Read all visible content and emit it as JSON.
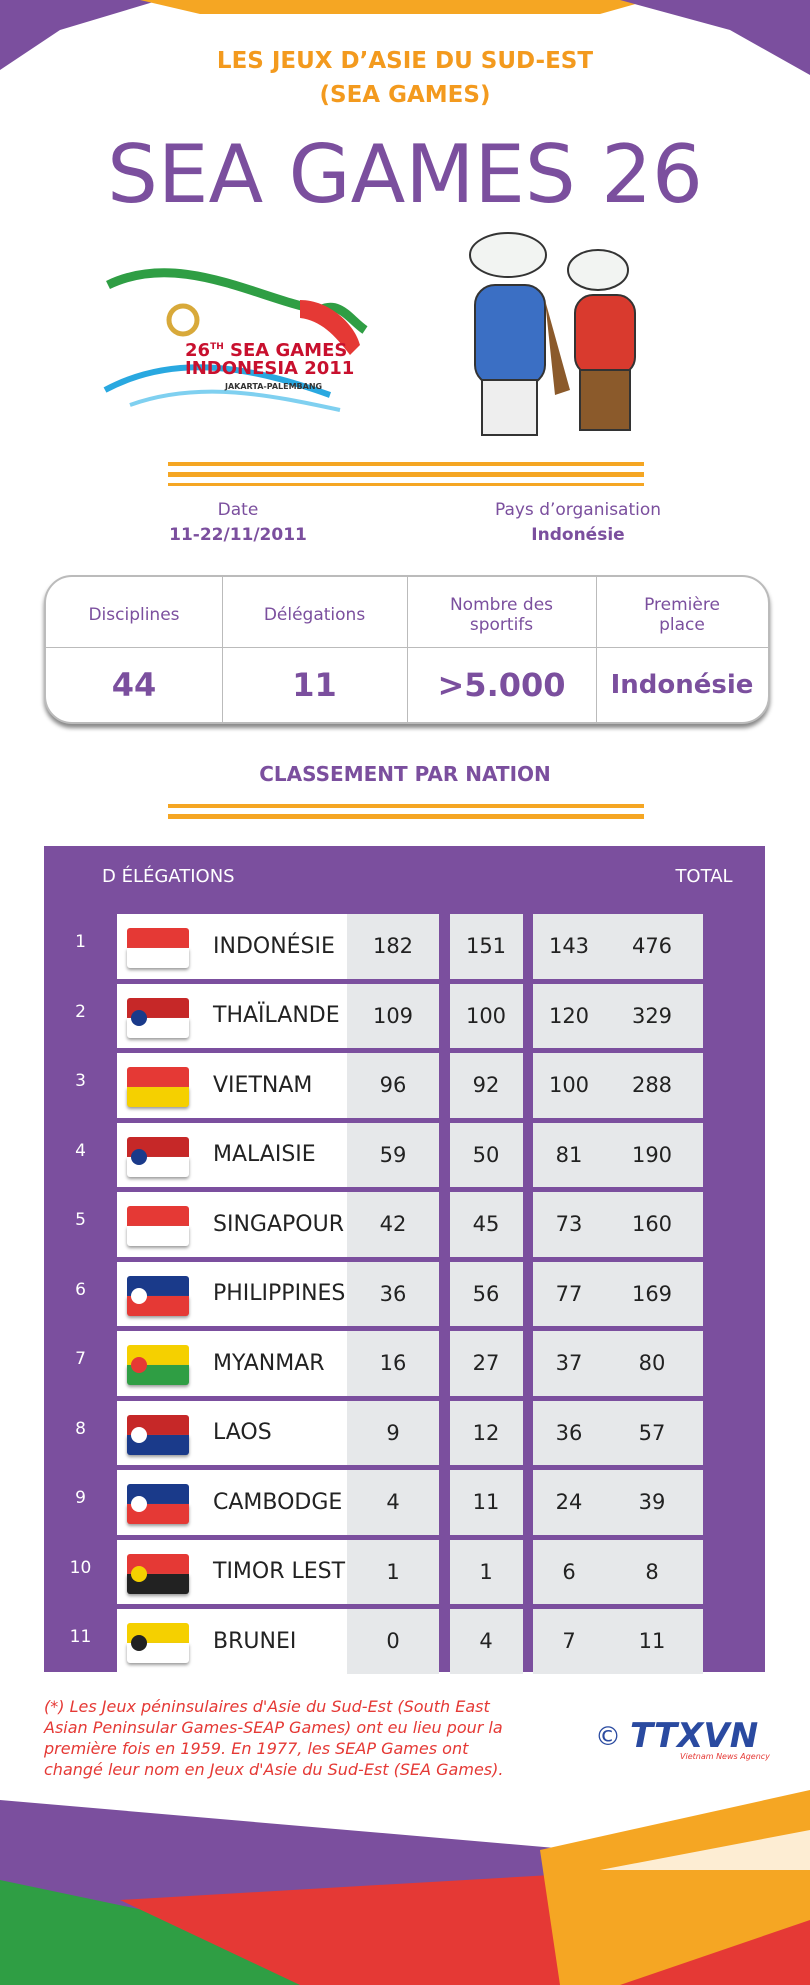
{
  "header": {
    "subtitle": [
      "LES JEUX D’ASIE DU SUD-EST",
      "(SEA GAMES)"
    ],
    "title": "SEA GAMES 26"
  },
  "logo": {
    "edition": "26",
    "suffix": "TH",
    "lines": [
      "SEA GAMES",
      "INDONESIA 2011",
      "JAKARTA-PALEMBANG"
    ]
  },
  "info": [
    {
      "label": "Date",
      "value": "11-22/11/2011"
    },
    {
      "label": "Pays d’organisation",
      "value": "Indonésie"
    }
  ],
  "stats": [
    {
      "label": "Disciplines",
      "value": "44"
    },
    {
      "label": "Délégations",
      "value": "11"
    },
    {
      "label": "Nombre des sportifs",
      "value": ">5.000"
    },
    {
      "label": "Première place",
      "value": "Indonésie"
    }
  ],
  "ranking": {
    "title": "CLASSEMENT PAR NATION",
    "header": {
      "delegations": "D ÉLÉGATIONS",
      "total": "TOTAL"
    },
    "rows": [
      [
        1,
        "INDONÉSIE",
        182,
        151,
        143,
        476
      ],
      [
        2,
        "THAÏLANDE",
        109,
        100,
        120,
        329
      ],
      [
        3,
        "VIETNAM",
        96,
        92,
        100,
        288
      ],
      [
        4,
        "MALAISIE",
        59,
        50,
        81,
        190
      ],
      [
        5,
        "SINGAPOUR",
        42,
        45,
        73,
        160
      ],
      [
        6,
        "PHILIPPINES",
        36,
        56,
        77,
        169
      ],
      [
        7,
        "MYANMAR",
        16,
        27,
        37,
        80
      ],
      [
        8,
        "LAOS",
        9,
        12,
        36,
        57
      ],
      [
        9,
        "CAMBODGE",
        4,
        11,
        24,
        39
      ],
      [
        10,
        "TIMOR LESTE",
        1,
        1,
        6,
        8
      ],
      [
        11,
        "BRUNEI",
        0,
        4,
        7,
        11
      ]
    ]
  },
  "footnote": "(*) Les Jeux péninsulaires d'Asie du Sud-Est (South East Asian Peninsular Games-SEAP Games) ont eu lieu pour la première fois en 1959. En 1977, les SEAP Games ont changé leur nom en Jeux d'Asie du Sud-Est (SEA Games).",
  "credit": {
    "copyright": "©",
    "agency": "TTXVN",
    "tagline": "Vietnam News Agency"
  }
}
